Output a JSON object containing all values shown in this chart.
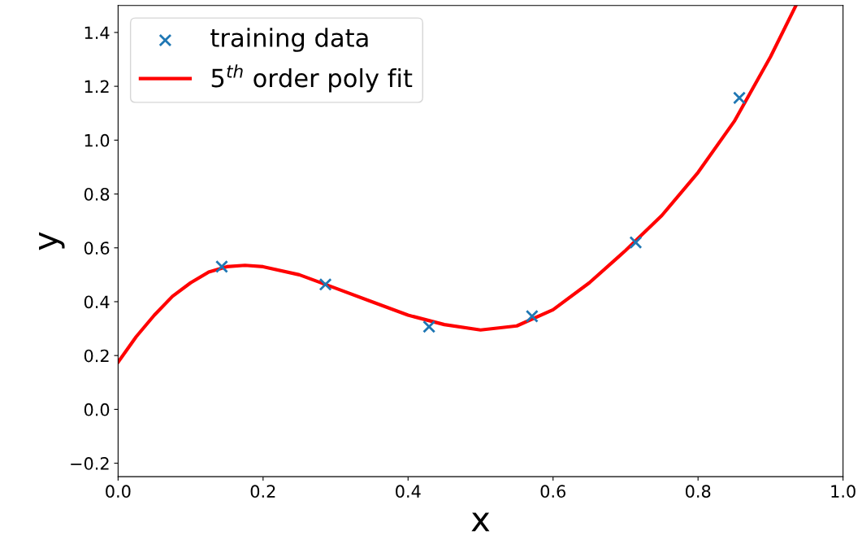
{
  "chart_data": {
    "type": "scatter",
    "xlabel": "x",
    "ylabel": "y",
    "xlim": [
      0,
      1
    ],
    "ylim": [
      -0.25,
      1.5
    ],
    "xticks": [
      {
        "value": 0,
        "label": "0.0"
      },
      0.2,
      0.4,
      0.6,
      0.8,
      {
        "value": 1,
        "label": "1.0"
      }
    ],
    "yticks": [
      {
        "value": -0.2,
        "label": "−0.2"
      },
      {
        "value": 0,
        "label": "0.0"
      },
      0.2,
      0.4,
      0.6,
      0.8,
      {
        "value": 1,
        "label": "1.0"
      },
      1.2,
      1.4
    ],
    "grid": false,
    "legend": "top left",
    "series": [
      {
        "name": "training data",
        "marker": "cross",
        "color": "#1f77b4",
        "x": [
          0.143,
          0.286,
          0.429,
          0.571,
          0.714,
          0.857
        ],
        "values": [
          0.53,
          0.464,
          0.307,
          0.346,
          0.62,
          1.157
        ]
      },
      {
        "name": "5$^{th}$ order poly fit",
        "type": "line",
        "line_style": "solid",
        "color": "#ff0000",
        "x": [
          0,
          0.025,
          0.05,
          0.075,
          0.1,
          0.125,
          0.15,
          0.175,
          0.2,
          0.25,
          0.3,
          0.35,
          0.4,
          0.45,
          0.5,
          0.55,
          0.6,
          0.65,
          0.7,
          0.75,
          0.8,
          0.85,
          0.9,
          0.935
        ],
        "values": [
          0.175,
          0.27,
          0.35,
          0.42,
          0.47,
          0.51,
          0.53,
          0.535,
          0.53,
          0.5,
          0.45,
          0.4,
          0.35,
          0.315,
          0.295,
          0.31,
          0.37,
          0.47,
          0.59,
          0.72,
          0.88,
          1.07,
          1.31,
          1.5
        ]
      }
    ]
  }
}
